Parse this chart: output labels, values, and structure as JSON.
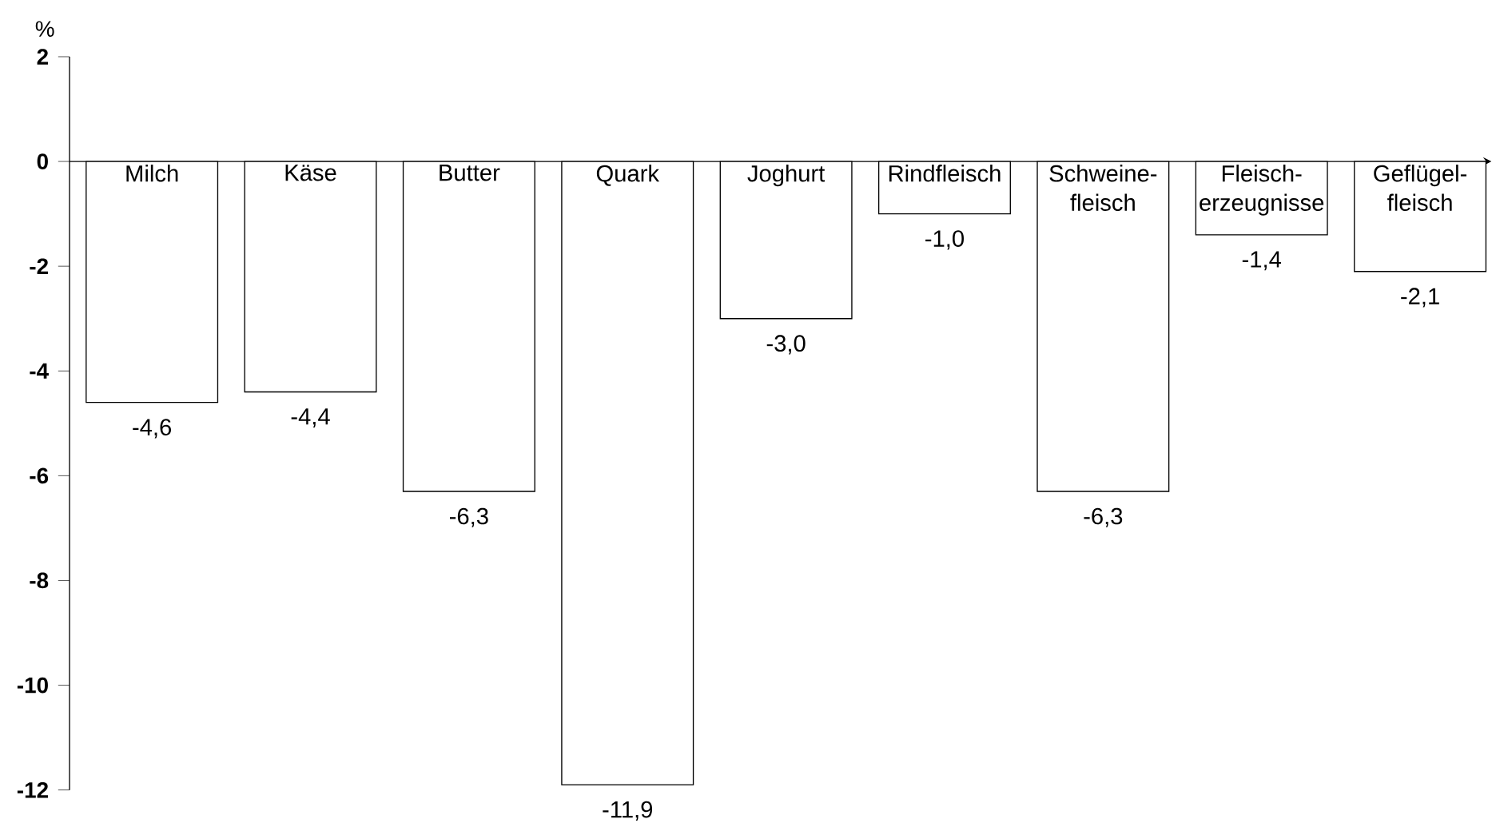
{
  "chart_data": {
    "type": "bar",
    "ylabel": "%",
    "categories": [
      "Milch",
      "Käse",
      "Butter",
      "Quark",
      "Joghurt",
      "Rindfleisch",
      "Schweine-fleisch",
      "Fleisch-erzeugnisse",
      "Geflügel-fleisch"
    ],
    "values": [
      -4.6,
      -4.4,
      -6.3,
      -11.9,
      -3.0,
      -1.0,
      -6.3,
      -1.4,
      -2.1
    ],
    "value_labels": [
      "-4,6",
      "-4,4",
      "-6,3",
      "-11,9",
      "-3,0",
      "-1,0",
      "-6,3",
      "-1,4",
      "-2,1"
    ],
    "color": "#ffffff",
    "ylim": [
      -12,
      2
    ],
    "yticks": [
      -12,
      -10,
      -8,
      -6,
      -4,
      -2,
      0,
      2
    ]
  }
}
